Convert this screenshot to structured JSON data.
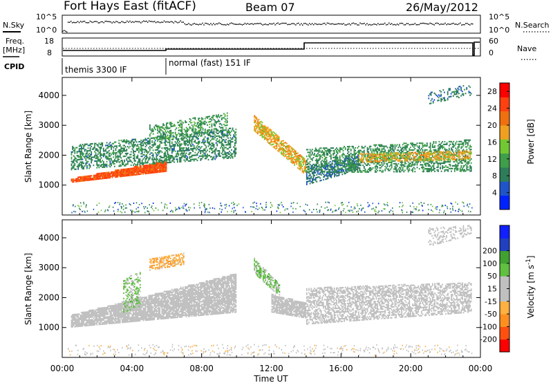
{
  "header": {
    "station": "Fort Hays East (fitACF)",
    "beam": "Beam 07",
    "date": "26/May/2012"
  },
  "top_panels": {
    "nsky_label": "N.Sky",
    "nsearch_label": "N.Search",
    "noise_ticks_left": [
      "10^5",
      "10^0"
    ],
    "noise_ticks_right": [
      "10^5",
      "10^0"
    ],
    "freq_label_1": "Freq.",
    "freq_label_2": "[MHz]",
    "freq_ticks": [
      "18",
      "8"
    ],
    "nave_label": "Nave",
    "nave_ticks": [
      "60",
      "0"
    ],
    "cpid_label": "CPID",
    "cpid_segments": [
      {
        "text": "themis 3300 IF",
        "start_hour": 0,
        "end_hour": 6
      },
      {
        "text": "normal (fast) 151 IF",
        "start_hour": 6,
        "end_hour": 24
      }
    ]
  },
  "colors": {
    "power_scale": [
      "#0022ff",
      "#1f55c8",
      "#2e7d5a",
      "#3e9e4a",
      "#72c832",
      "#f0a020",
      "#f07010",
      "#ff4010",
      "#ff0000"
    ],
    "velocity_scale": [
      "#ff0000",
      "#ff5010",
      "#ff9020",
      "#ffb040",
      "#c0c0c0",
      "#c0c0c0",
      "#60c040",
      "#40a030",
      "#2040c0",
      "#1020ff"
    ]
  },
  "chart_data": [
    {
      "type": "heatmap",
      "name": "Power",
      "xlabel": "",
      "ylabel": "Slant Range [km]",
      "x_range_hours": [
        0,
        24
      ],
      "ylim": [
        0,
        4600
      ],
      "y_ticks": [
        "1000",
        "2000",
        "3000",
        "4000"
      ],
      "colorbar_label": "Power [dB]",
      "colorbar_ticks": [
        "4",
        "8",
        "12",
        "16",
        "20",
        "24",
        "28"
      ],
      "colorbar_range": [
        0,
        30
      ],
      "bands": [
        {
          "t": [
            0.5,
            6.0
          ],
          "r0": [
            1080,
            1450
          ],
          "r1": [
            1200,
            1800
          ],
          "v": 24,
          "density": 0.95
        },
        {
          "t": [
            0.5,
            10.0
          ],
          "r0": [
            1500,
            1900
          ],
          "r1": [
            2300,
            2900
          ],
          "v": 9,
          "density": 0.45
        },
        {
          "t": [
            5.0,
            9.5
          ],
          "r0": [
            2400,
            2900
          ],
          "r1": [
            3000,
            3400
          ],
          "v": 11,
          "density": 0.35
        },
        {
          "t": [
            11.0,
            14.0
          ],
          "r0": [
            2800,
            1300
          ],
          "r1": [
            3300,
            1800
          ],
          "v": 18,
          "density": 0.7
        },
        {
          "t": [
            14.0,
            17.0
          ],
          "r0": [
            1000,
            1500
          ],
          "r1": [
            1600,
            2000
          ],
          "v": 7,
          "density": 0.5
        },
        {
          "t": [
            14.0,
            23.5
          ],
          "r0": [
            1400,
            1450
          ],
          "r1": [
            2200,
            2500
          ],
          "v": 10,
          "density": 0.45
        },
        {
          "t": [
            17.0,
            23.5
          ],
          "r0": [
            1750,
            1850
          ],
          "r1": [
            2050,
            2150
          ],
          "v": 18,
          "density": 0.55
        },
        {
          "t": [
            21.0,
            23.5
          ],
          "r0": [
            3700,
            4000
          ],
          "r1": [
            4100,
            4400
          ],
          "v": 8,
          "density": 0.3
        }
      ]
    },
    {
      "type": "heatmap",
      "name": "Velocity",
      "xlabel": "Time UT",
      "ylabel": "Slant Range [km]",
      "x_range_hours": [
        0,
        24
      ],
      "x_ticks": [
        "00:00",
        "04:00",
        "08:00",
        "12:00",
        "16:00",
        "20:00",
        "00:00"
      ],
      "ylim": [
        0,
        4600
      ],
      "y_ticks": [
        "1000",
        "2000",
        "3000",
        "4000"
      ],
      "colorbar_label": "Velocity [m s^-1]",
      "colorbar_ticks": [
        "-200",
        "-100",
        "-50",
        "-15",
        "15",
        "50",
        "100",
        "200"
      ],
      "colorbar_range": [
        -250,
        250
      ],
      "bands": [
        {
          "t": [
            0.5,
            10.0
          ],
          "r0": [
            1000,
            1500
          ],
          "r1": [
            1400,
            2800
          ],
          "v": 0,
          "density": 0.85
        },
        {
          "t": [
            3.5,
            4.5
          ],
          "r0": [
            1500,
            1700
          ],
          "r1": [
            2600,
            2900
          ],
          "v": 60,
          "density": 0.4
        },
        {
          "t": [
            5.0,
            7.0
          ],
          "r0": [
            2900,
            3100
          ],
          "r1": [
            3300,
            3500
          ],
          "v": -80,
          "density": 0.55
        },
        {
          "t": [
            11.0,
            12.5
          ],
          "r0": [
            2800,
            2000
          ],
          "r1": [
            3300,
            2400
          ],
          "v": 60,
          "density": 0.6
        },
        {
          "t": [
            12.0,
            14.0
          ],
          "r0": [
            1500,
            1300
          ],
          "r1": [
            2100,
            1800
          ],
          "v": 0,
          "density": 0.85
        },
        {
          "t": [
            14.0,
            23.5
          ],
          "r0": [
            1100,
            1500
          ],
          "r1": [
            2300,
            2500
          ],
          "v": 0,
          "density": 0.55
        },
        {
          "t": [
            21.0,
            23.5
          ],
          "r0": [
            3700,
            4100
          ],
          "r1": [
            4300,
            4400
          ],
          "v": 0,
          "density": 0.3
        }
      ]
    }
  ]
}
